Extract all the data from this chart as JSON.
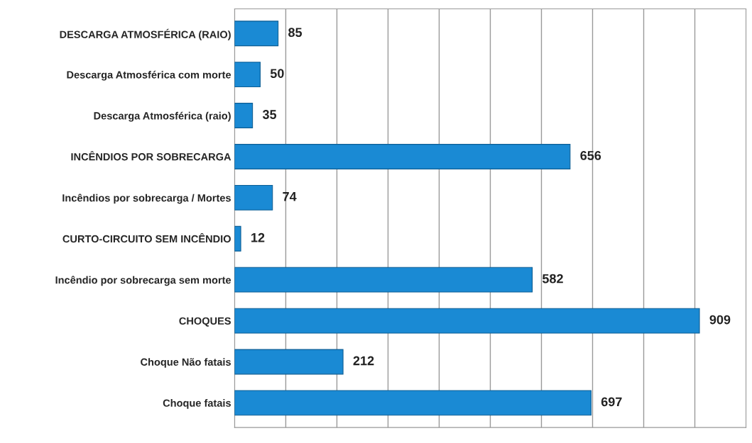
{
  "chart_data": {
    "type": "bar",
    "orientation": "horizontal",
    "categories": [
      "DESCARGA ATMOSFÉRICA (RAIO)",
      "Descarga Atmosférica com morte",
      "Descarga Atmosférica (raio)",
      "INCÊNDIOS POR SOBRECARGA",
      "Incêndios por sobrecarga / Mortes",
      "CURTO-CIRCUITO SEM INCÊNDIO",
      "Incêndio por sobrecarga sem morte",
      "CHOQUES",
      "Choque Não fatais",
      "Choque fatais"
    ],
    "values": [
      85,
      50,
      35,
      656,
      74,
      12,
      582,
      909,
      212,
      697
    ],
    "color": "#1a8ad4",
    "xlim": [
      0,
      1000
    ],
    "xticks": [
      {
        "value": 0,
        "label": null
      },
      {
        "value": 100,
        "label": null
      },
      {
        "value": 200,
        "label": null
      },
      {
        "value": 300,
        "label": null
      },
      {
        "value": 400,
        "label": null
      },
      {
        "value": 500,
        "label": null
      },
      {
        "value": 600,
        "label": null
      },
      {
        "value": 700,
        "label": null
      },
      {
        "value": 800,
        "label": null
      },
      {
        "value": 900,
        "label": null
      }
    ],
    "tick_labels": "y",
    "grid": "x",
    "data_labels": true,
    "legend": false
  }
}
